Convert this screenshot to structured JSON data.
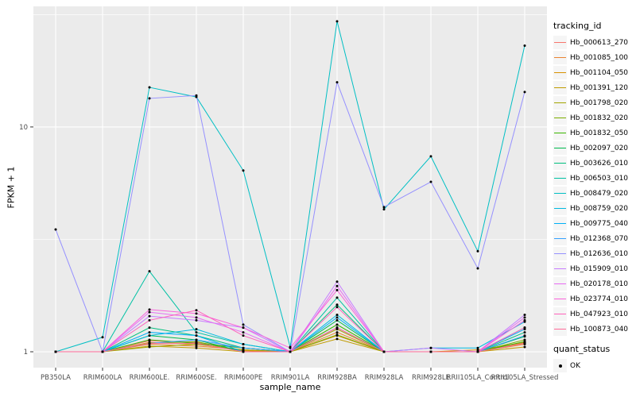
{
  "legend": {
    "color_title": "tracking_id",
    "shape_title": "quant_status",
    "shape_label": "OK"
  },
  "chart_data": {
    "type": "line",
    "title": "",
    "xlabel": "sample_name",
    "ylabel": "FPKM + 1",
    "y_scale": "log10",
    "y_ticks": [
      1,
      10
    ],
    "y_tick_labels": [
      "1",
      "10"
    ],
    "y_minor_ticks": [
      3.1623,
      31.623
    ],
    "ylim": [
      0.85,
      34.4
    ],
    "grid": true,
    "legend_position": "right",
    "panel_bg": "#EBEBEB",
    "grid_color": "#FFFFFF",
    "tick_color": "#333333",
    "tick_label_color": "#4D4D4D",
    "point_color": "#000000",
    "categories": [
      "PB350LA",
      "RRIM600LA",
      "RRIM600LE.",
      "RRIM600SE.",
      "RRIM600PE",
      "RRIM901LA",
      "RRIM928BA",
      "RRIM928LA",
      "RRIM928LE",
      "RRII105LA_Control",
      "RRII105LA_Stressed"
    ],
    "series": [
      {
        "name": "Hb_000613_270",
        "color": "#F8766D",
        "values": [
          1,
          1,
          1.12,
          1.1,
          1.04,
          1,
          1.28,
          1,
          1,
          1,
          1.1
        ]
      },
      {
        "name": "Hb_001085_100",
        "color": "#EA8331",
        "values": [
          1,
          1,
          1.08,
          1.06,
          1.02,
          1,
          1.22,
          1,
          1,
          1,
          1.08
        ]
      },
      {
        "name": "Hb_001104_050",
        "color": "#D89000",
        "values": [
          1,
          1,
          1.1,
          1.08,
          1.01,
          1,
          1.18,
          1,
          1,
          1.02,
          1.1
        ]
      },
      {
        "name": "Hb_001391_120",
        "color": "#C09B00",
        "values": [
          1,
          1,
          1.06,
          1.04,
          1,
          1,
          1.14,
          1,
          1,
          1,
          1.05
        ]
      },
      {
        "name": "Hb_001798_020",
        "color": "#A3A500",
        "values": [
          1,
          1,
          1.05,
          1.08,
          1.02,
          1,
          1.26,
          1,
          1,
          1,
          1.09
        ]
      },
      {
        "name": "Hb_001832_020",
        "color": "#7CAE00",
        "values": [
          1,
          1,
          1.09,
          1.11,
          1,
          1,
          1.19,
          1,
          1,
          1,
          1.13
        ]
      },
      {
        "name": "Hb_001832_050",
        "color": "#39B600",
        "values": [
          1,
          1,
          1.13,
          1.09,
          1.04,
          1,
          1.32,
          1,
          1,
          1,
          1.11
        ]
      },
      {
        "name": "Hb_002097_020",
        "color": "#00BB4E",
        "values": [
          1,
          1,
          1.18,
          1.13,
          1,
          1,
          1.38,
          1,
          1,
          1,
          1.17
        ]
      },
      {
        "name": "Hb_003626_010",
        "color": "#00BF7D",
        "values": [
          1,
          1,
          1.28,
          1.18,
          1.04,
          1,
          1.62,
          1,
          1,
          1,
          1.22
        ]
      },
      {
        "name": "Hb_006503_010",
        "color": "#00C1A3",
        "values": [
          1,
          1,
          2.28,
          1.22,
          1.08,
          1,
          1.74,
          1,
          1,
          1,
          1.28
        ]
      },
      {
        "name": "Hb_008479_020",
        "color": "#00BFC4",
        "values": [
          1,
          1.16,
          15.0,
          13.6,
          6.4,
          1.05,
          29.5,
          4.3,
          7.4,
          2.8,
          23.0
        ]
      },
      {
        "name": "Hb_008759_020",
        "color": "#00BAE0",
        "values": [
          1,
          1,
          1.18,
          1.26,
          1.08,
          1,
          1.46,
          1,
          1.04,
          1.04,
          1.36
        ]
      },
      {
        "name": "Hb_009775_040",
        "color": "#00B0F6",
        "values": [
          1,
          1,
          1.22,
          1.18,
          1,
          1,
          1.42,
          1,
          1,
          1,
          1.26
        ]
      },
      {
        "name": "Hb_012368_070",
        "color": "#35A2FF",
        "values": [
          1,
          1,
          1.09,
          1.13,
          1.04,
          1,
          1.28,
          1,
          1,
          1,
          1.18
        ]
      },
      {
        "name": "Hb_012636_010",
        "color": "#9590FF",
        "values": [
          3.5,
          1,
          13.4,
          13.8,
          1.32,
          1,
          15.8,
          4.4,
          5.7,
          2.35,
          14.3
        ]
      },
      {
        "name": "Hb_015909_010",
        "color": "#C77CFF",
        "values": [
          1,
          1,
          1.44,
          1.38,
          1.28,
          1,
          2.05,
          1,
          1.04,
          1,
          1.46
        ]
      },
      {
        "name": "Hb_020178_010",
        "color": "#E76BF3",
        "values": [
          1,
          1,
          1.5,
          1.42,
          1.22,
          1,
          1.96,
          1,
          1,
          1,
          1.42
        ]
      },
      {
        "name": "Hb_023774_010",
        "color": "#FA62DB",
        "values": [
          1,
          1,
          1.54,
          1.48,
          1.28,
          1.04,
          1.88,
          1,
          1,
          1,
          1.38
        ]
      },
      {
        "name": "Hb_047923_010",
        "color": "#FF62BC",
        "values": [
          1,
          1,
          1.38,
          1.53,
          1.18,
          1,
          1.58,
          1,
          1,
          1,
          1.28
        ]
      },
      {
        "name": "Hb_100873_040",
        "color": "#FF6A98",
        "values": [
          1,
          1,
          1.09,
          1.09,
          1,
          1,
          1.28,
          1,
          1,
          1,
          1.09
        ]
      }
    ]
  }
}
